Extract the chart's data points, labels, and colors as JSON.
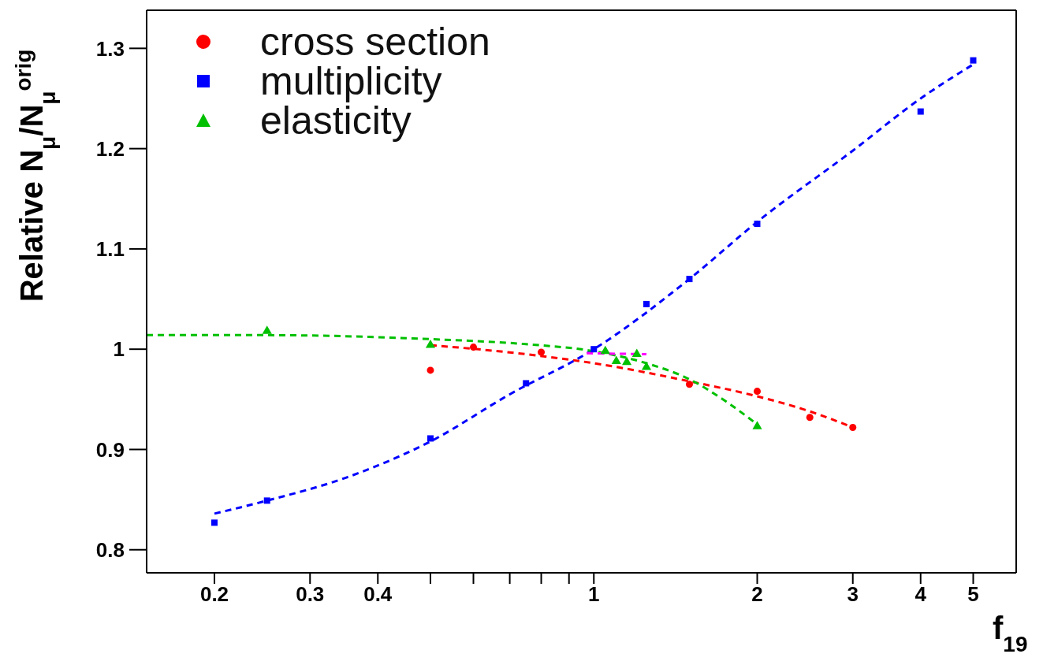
{
  "chart_data": {
    "type": "scatter",
    "xlabel": "f$_{19}$",
    "ylabel": "Relative  N$_{μ}$/N$_{μ}$$^{orig}$",
    "log": "x",
    "xlim": [
      0.15,
      6
    ],
    "ylim": [
      0.777,
      1.338
    ],
    "xticks": [
      0.2,
      0.3,
      0.4,
      {
        "value": 0.5,
        "label": null
      },
      {
        "value": 0.6,
        "label": null
      },
      {
        "value": 0.7,
        "label": null
      },
      {
        "value": 0.8,
        "label": null
      },
      {
        "value": 0.9,
        "label": null
      },
      1,
      2,
      3,
      4,
      5
    ],
    "yticks": [
      {
        "value": 0.8,
        "label": "0.8"
      },
      {
        "value": 0.9,
        "label": "0.9"
      },
      1,
      {
        "value": 1.1,
        "label": "1.1"
      },
      {
        "value": 1.2,
        "label": "1.2"
      },
      {
        "value": 1.3,
        "label": "1.3"
      }
    ],
    "legend": "top left",
    "series": [
      {
        "type": "line",
        "color": "#ff0000",
        "line_style": "dashed",
        "marker": "none",
        "x": [
          0.5,
          0.75,
          1,
          1.5,
          2,
          2.5,
          3
        ],
        "values": [
          1.004,
          0.995,
          0.986,
          0.968,
          0.953,
          0.938,
          0.922
        ]
      },
      {
        "type": "line",
        "color": "#0000ff",
        "line_style": "dashed",
        "marker": "none",
        "x": [
          0.2,
          0.25,
          0.35,
          0.5,
          0.7,
          1,
          1.5,
          2,
          3,
          4,
          5
        ],
        "values": [
          0.836,
          0.849,
          0.872,
          0.908,
          0.955,
          1.0,
          1.07,
          1.127,
          1.198,
          1.25,
          1.284
        ]
      },
      {
        "type": "line",
        "color": "#00c000",
        "line_style": "dashed",
        "marker": "none",
        "x": [
          0.15,
          0.25,
          0.5,
          0.75,
          1,
          1.25,
          1.5,
          1.75,
          2
        ],
        "values": [
          1.014,
          1.014,
          1.01,
          1.005,
          0.998,
          0.986,
          0.97,
          0.948,
          0.925
        ]
      },
      {
        "type": "line",
        "color": "#ff00ff",
        "line_style": "dashed",
        "marker": "none",
        "x": [
          0.97,
          1.25
        ],
        "values": [
          0.996,
          0.995
        ]
      },
      {
        "name": "cross section",
        "color": "#ff0000",
        "marker": "circle",
        "x": [
          0.5,
          0.6,
          0.8,
          1.5,
          2,
          2.5,
          3
        ],
        "values": [
          0.979,
          1.002,
          0.997,
          0.965,
          0.958,
          0.932,
          0.922
        ]
      },
      {
        "name": "multiplicity",
        "color": "#0000ff",
        "marker": "square",
        "x": [
          0.2,
          0.25,
          0.5,
          0.75,
          1,
          1.25,
          1.5,
          2,
          4,
          5
        ],
        "values": [
          0.827,
          0.849,
          0.911,
          0.966,
          1.0,
          1.045,
          1.07,
          1.125,
          1.237,
          1.288
        ]
      },
      {
        "name": "elasticity",
        "color": "#00c000",
        "marker": "triangle",
        "x": [
          0.25,
          0.5,
          1.05,
          1.1,
          1.15,
          1.2,
          1.25,
          2
        ],
        "values": [
          1.018,
          1.004,
          0.998,
          0.988,
          0.987,
          0.995,
          0.982,
          0.923
        ]
      }
    ]
  }
}
